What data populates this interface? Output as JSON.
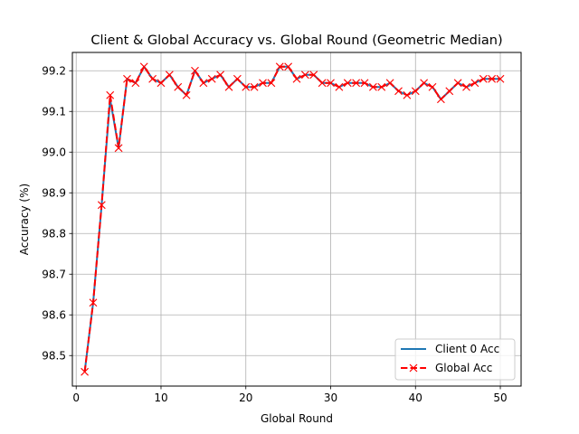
{
  "chart_data": {
    "type": "line",
    "title": "Client & Global Accuracy vs. Global Round (Geometric Median)",
    "xlabel": "Global Round",
    "ylabel": "Accuracy (%)",
    "xlim": [
      -0.45,
      52.45
    ],
    "ylim": [
      98.425,
      99.245
    ],
    "xticks": [
      0,
      10,
      20,
      30,
      40,
      50
    ],
    "yticks": [
      98.5,
      98.6,
      98.7,
      98.8,
      98.9,
      99.0,
      99.1,
      99.2
    ],
    "ytick_labels": [
      "98.5",
      "98.6",
      "98.7",
      "98.8",
      "98.9",
      "99.0",
      "99.1",
      "99.2"
    ],
    "grid": true,
    "legend_position": "lower-right",
    "x": [
      1,
      2,
      3,
      4,
      5,
      6,
      7,
      8,
      9,
      10,
      11,
      12,
      13,
      14,
      15,
      16,
      17,
      18,
      19,
      20,
      21,
      22,
      23,
      24,
      25,
      26,
      27,
      28,
      29,
      30,
      31,
      32,
      33,
      34,
      35,
      36,
      37,
      38,
      39,
      40,
      41,
      42,
      43,
      44,
      45,
      46,
      47,
      48,
      49,
      50
    ],
    "series": [
      {
        "name": "Client 0 Acc",
        "color": "#1f77b4",
        "style": "solid",
        "marker": "none",
        "values": [
          98.46,
          98.63,
          98.87,
          99.13,
          99.01,
          99.18,
          99.17,
          99.21,
          99.18,
          99.17,
          99.19,
          99.16,
          99.14,
          99.2,
          99.17,
          99.18,
          99.19,
          99.16,
          99.18,
          99.16,
          99.16,
          99.17,
          99.17,
          99.21,
          99.21,
          99.18,
          99.19,
          99.19,
          99.17,
          99.17,
          99.16,
          99.17,
          99.17,
          99.17,
          99.16,
          99.16,
          99.17,
          99.15,
          99.14,
          99.15,
          99.17,
          99.16,
          99.13,
          99.15,
          99.17,
          99.16,
          99.17,
          99.18,
          99.18,
          99.18
        ]
      },
      {
        "name": "Global Acc",
        "color": "#ff0000",
        "style": "dashed",
        "marker": "x",
        "values": [
          98.46,
          98.63,
          98.87,
          99.14,
          99.01,
          99.18,
          99.17,
          99.21,
          99.18,
          99.17,
          99.19,
          99.16,
          99.14,
          99.2,
          99.17,
          99.18,
          99.19,
          99.16,
          99.18,
          99.16,
          99.16,
          99.17,
          99.17,
          99.21,
          99.21,
          99.18,
          99.19,
          99.19,
          99.17,
          99.17,
          99.16,
          99.17,
          99.17,
          99.17,
          99.16,
          99.16,
          99.17,
          99.15,
          99.14,
          99.15,
          99.17,
          99.16,
          99.13,
          99.15,
          99.17,
          99.16,
          99.17,
          99.18,
          99.18,
          99.18
        ]
      }
    ]
  }
}
